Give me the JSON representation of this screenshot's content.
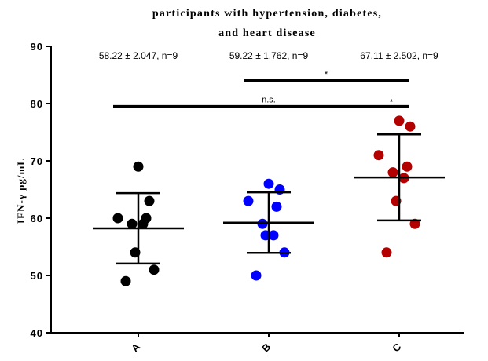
{
  "chart_data": {
    "type": "scatter",
    "title_lines": [
      "participants with hypertension, diabetes,",
      "and heart disease"
    ],
    "ylabel": "IFN-γ pg/mL",
    "ylim": [
      40,
      90
    ],
    "yticks": [
      40,
      50,
      60,
      70,
      80,
      90
    ],
    "categories": [
      "A",
      "B",
      "C"
    ],
    "series": [
      {
        "color": "#000000",
        "values": [
          69,
          63,
          60,
          60,
          59,
          59,
          54,
          51,
          49
        ],
        "mean": 58.22,
        "sd": 6.14,
        "label": "58.22 ± 2.047, n=9"
      },
      {
        "color": "#0000ff",
        "values": [
          66,
          65,
          63,
          62,
          59,
          57,
          57,
          54,
          50
        ],
        "mean": 59.22,
        "sd": 5.29,
        "label": "59.22 ± 1.762, n=9"
      },
      {
        "color": "#b30000",
        "values": [
          77,
          76,
          71,
          69,
          68,
          67,
          63,
          59,
          54
        ],
        "mean": 67.11,
        "sd": 7.51,
        "label": "67.11 ± 2.502, n=9"
      }
    ],
    "comparisons": [
      {
        "from": "B",
        "to": "C",
        "y": 84,
        "label": "*"
      },
      {
        "from": "A",
        "to": "C",
        "y": 79.5,
        "label": "n.s.",
        "label2": "*"
      }
    ],
    "grid": false,
    "legend": "none"
  }
}
